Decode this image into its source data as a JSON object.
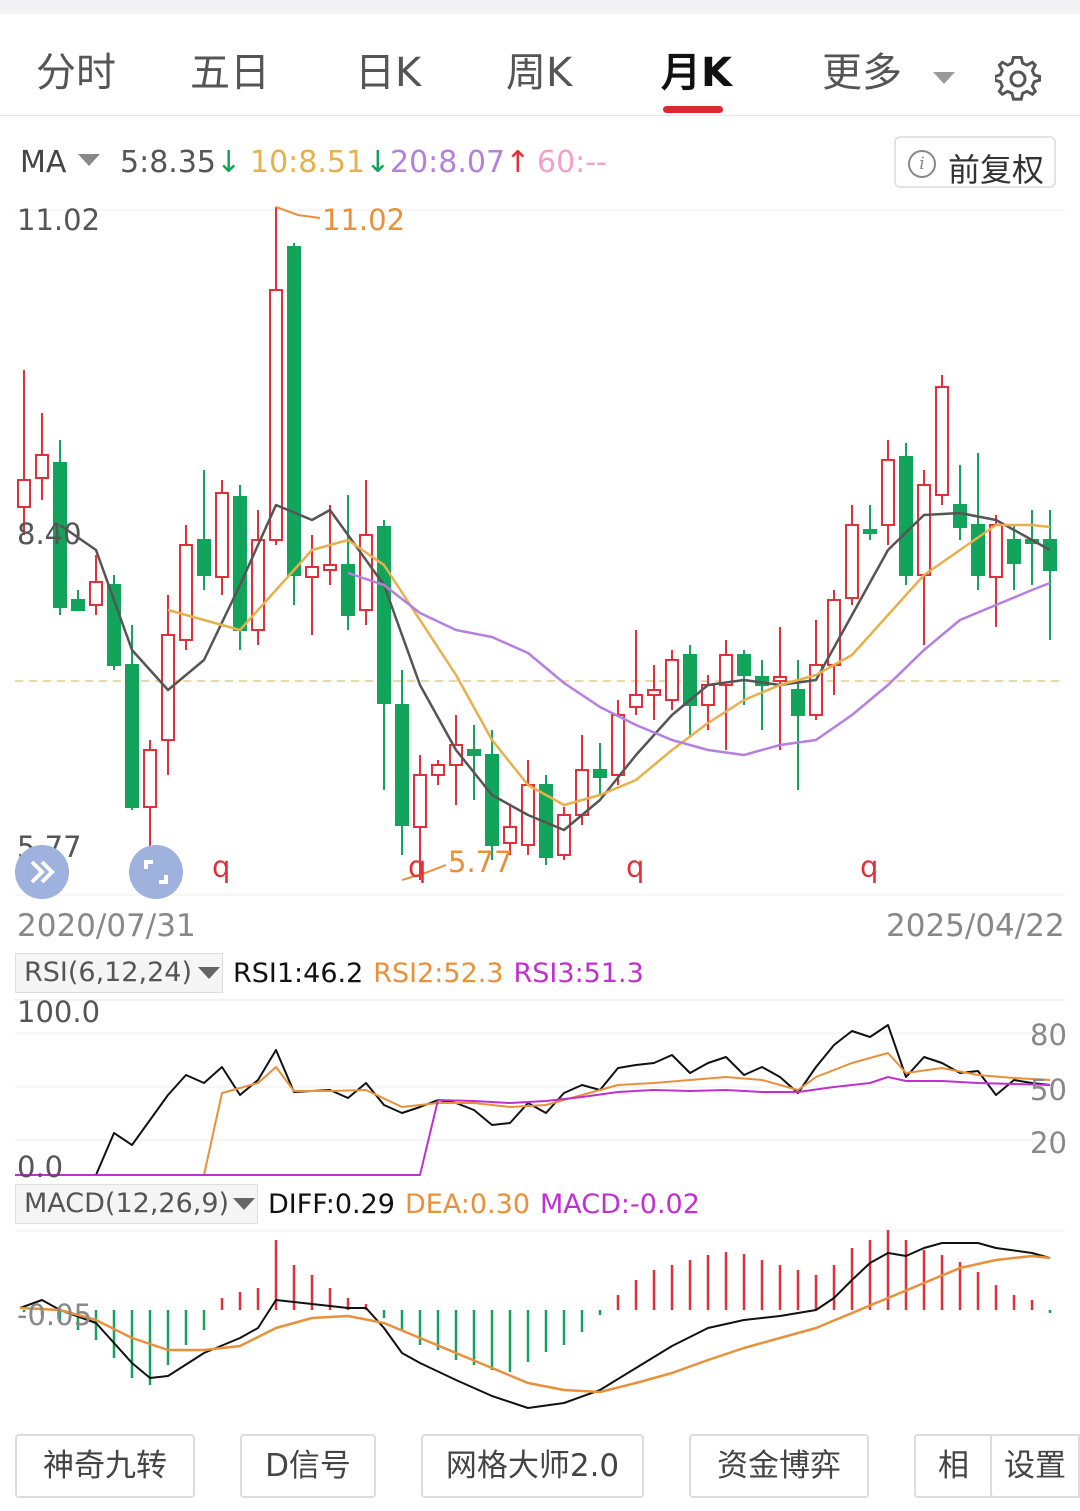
{
  "tabs": [
    {
      "label": "分时"
    },
    {
      "label": "五日"
    },
    {
      "label": "日K"
    },
    {
      "label": "周K"
    },
    {
      "label": "月K",
      "active": true
    },
    {
      "label": "更多"
    }
  ],
  "ma": {
    "label": "MA",
    "ma5": "5:8.35",
    "ma10": "10:8.51",
    "ma20": "20:8.07",
    "ma60": "60:--",
    "arrow_down": "↓",
    "arrow_up": "↑",
    "colors": {
      "ma5": "#555555",
      "ma10": "#e8b04a",
      "ma20": "#b57fe0",
      "ma60": "#f2a0c8"
    }
  },
  "adjust_button": {
    "label": "前复权",
    "icon": "info-icon"
  },
  "main_chart": {
    "y_top": "11.02",
    "y_mid": "8.40",
    "y_bottom": "5.77",
    "high_label": "11.02",
    "low_label": "5.77",
    "date_start": "2020/07/31",
    "date_end": "2025/04/22",
    "markers": [
      "q",
      "q",
      "q",
      "q"
    ],
    "up_color": "#e0313a",
    "down_color": "#12a45a"
  },
  "rsi": {
    "name": "RSI(6,12,24)",
    "rsi1": "RSI1:46.2",
    "rsi2": "RSI2:52.3",
    "rsi3": "RSI3:51.3",
    "y_max": "100.0",
    "y_min": "0.0",
    "levels": [
      "80",
      "50",
      "20"
    ]
  },
  "macd": {
    "name": "MACD(12,26,9)",
    "diff": "DIFF:0.29",
    "dea": "DEA:0.30",
    "macd": "MACD:-0.02",
    "y_label": "-0.05"
  },
  "bottom_buttons": [
    "神奇九转",
    "D信号",
    "网格大师2.0",
    "资金博弈",
    "相",
    "设置"
  ],
  "float_icons": [
    "expand-icon",
    "fullscreen-icon"
  ]
}
